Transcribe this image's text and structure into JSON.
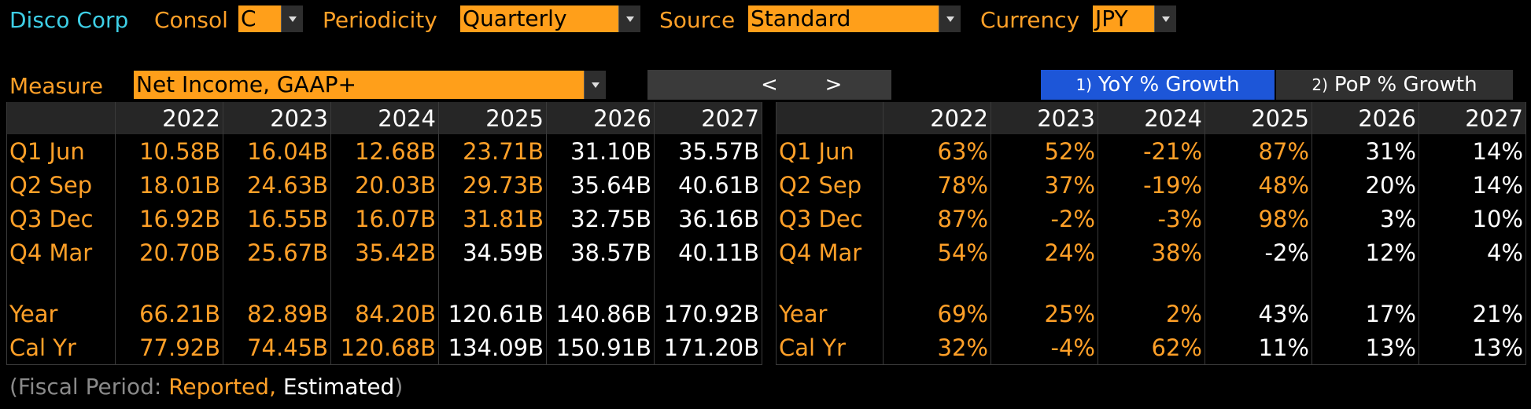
{
  "header": {
    "company": "Disco Corp",
    "consol_label": "Consol",
    "consol_value": "C",
    "periodicity_label": "Periodicity",
    "periodicity_value": "Quarterly",
    "source_label": "Source",
    "source_value": "Standard",
    "currency_label": "Currency",
    "currency_value": "JPY"
  },
  "measure": {
    "label": "Measure",
    "value": "Net Income, GAAP+",
    "prev_label": "<",
    "next_label": ">",
    "tab1_num": "1)",
    "tab1_label": "YoY % Growth",
    "tab2_num": "2)",
    "tab2_label": "PoP % Growth"
  },
  "left_table": {
    "columns": [
      "2022",
      "2023",
      "2024",
      "2025",
      "2026",
      "2027"
    ],
    "rows": [
      {
        "label": "Q1 Jun",
        "cells": [
          "10.58B",
          "16.04B",
          "12.68B",
          "23.71B",
          "31.10B",
          "35.57B"
        ]
      },
      {
        "label": "Q2 Sep",
        "cells": [
          "18.01B",
          "24.63B",
          "20.03B",
          "29.73B",
          "35.64B",
          "40.61B"
        ]
      },
      {
        "label": "Q3 Dec",
        "cells": [
          "16.92B",
          "16.55B",
          "16.07B",
          "31.81B",
          "32.75B",
          "36.16B"
        ]
      },
      {
        "label": "Q4 Mar",
        "cells": [
          "20.70B",
          "25.67B",
          "35.42B",
          "34.59B",
          "38.57B",
          "40.11B"
        ]
      },
      {
        "label": "Year",
        "cells": [
          "66.21B",
          "82.89B",
          "84.20B",
          "120.61B",
          "140.86B",
          "170.92B"
        ]
      },
      {
        "label": "Cal Yr",
        "cells": [
          "77.92B",
          "74.45B",
          "120.68B",
          "134.09B",
          "150.91B",
          "171.20B"
        ]
      }
    ]
  },
  "right_table": {
    "columns": [
      "2022",
      "2023",
      "2024",
      "2025",
      "2026",
      "2027"
    ],
    "rows": [
      {
        "label": "Q1 Jun",
        "cells": [
          "63%",
          "52%",
          "-21%",
          "87%",
          "31%",
          "14%"
        ]
      },
      {
        "label": "Q2 Sep",
        "cells": [
          "78%",
          "37%",
          "-19%",
          "48%",
          "20%",
          "14%"
        ]
      },
      {
        "label": "Q3 Dec",
        "cells": [
          "87%",
          "-2%",
          "-3%",
          "98%",
          "3%",
          "10%"
        ]
      },
      {
        "label": "Q4 Mar",
        "cells": [
          "54%",
          "24%",
          "38%",
          "-2%",
          "12%",
          "4%"
        ]
      },
      {
        "label": "Year",
        "cells": [
          "69%",
          "25%",
          "2%",
          "43%",
          "17%",
          "21%"
        ]
      },
      {
        "label": "Cal Yr",
        "cells": [
          "32%",
          "-4%",
          "62%",
          "11%",
          "13%",
          "13%"
        ]
      }
    ]
  },
  "footer": {
    "prefix": "(Fiscal Period: ",
    "reported": "Reported",
    "comma": ", ",
    "estimated": "Estimated",
    "suffix": ")"
  },
  "colors": {
    "reported": "#ffa028",
    "estimated": "#ffffff",
    "company": "#3ecfe6",
    "active_tab": "#1d56d8",
    "field_bg": "#ff9f1a"
  }
}
